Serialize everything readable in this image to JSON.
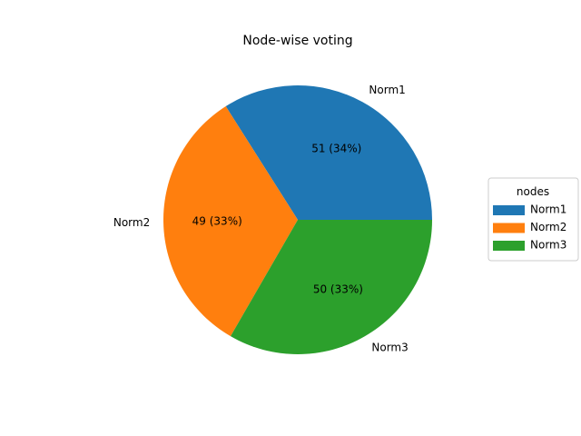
{
  "chart_data": {
    "type": "pie",
    "title": "Node-wise voting",
    "slices": [
      {
        "label": "Norm1",
        "value": 51,
        "pct_label": "51 (34%)",
        "color": "#1f77b4"
      },
      {
        "label": "Norm2",
        "value": 49,
        "pct_label": "49 (33%)",
        "color": "#ff7f0e"
      },
      {
        "label": "Norm3",
        "value": 50,
        "pct_label": "50 (33%)",
        "color": "#2ca02c"
      }
    ],
    "legend": {
      "title": "nodes",
      "placement": "right"
    }
  }
}
